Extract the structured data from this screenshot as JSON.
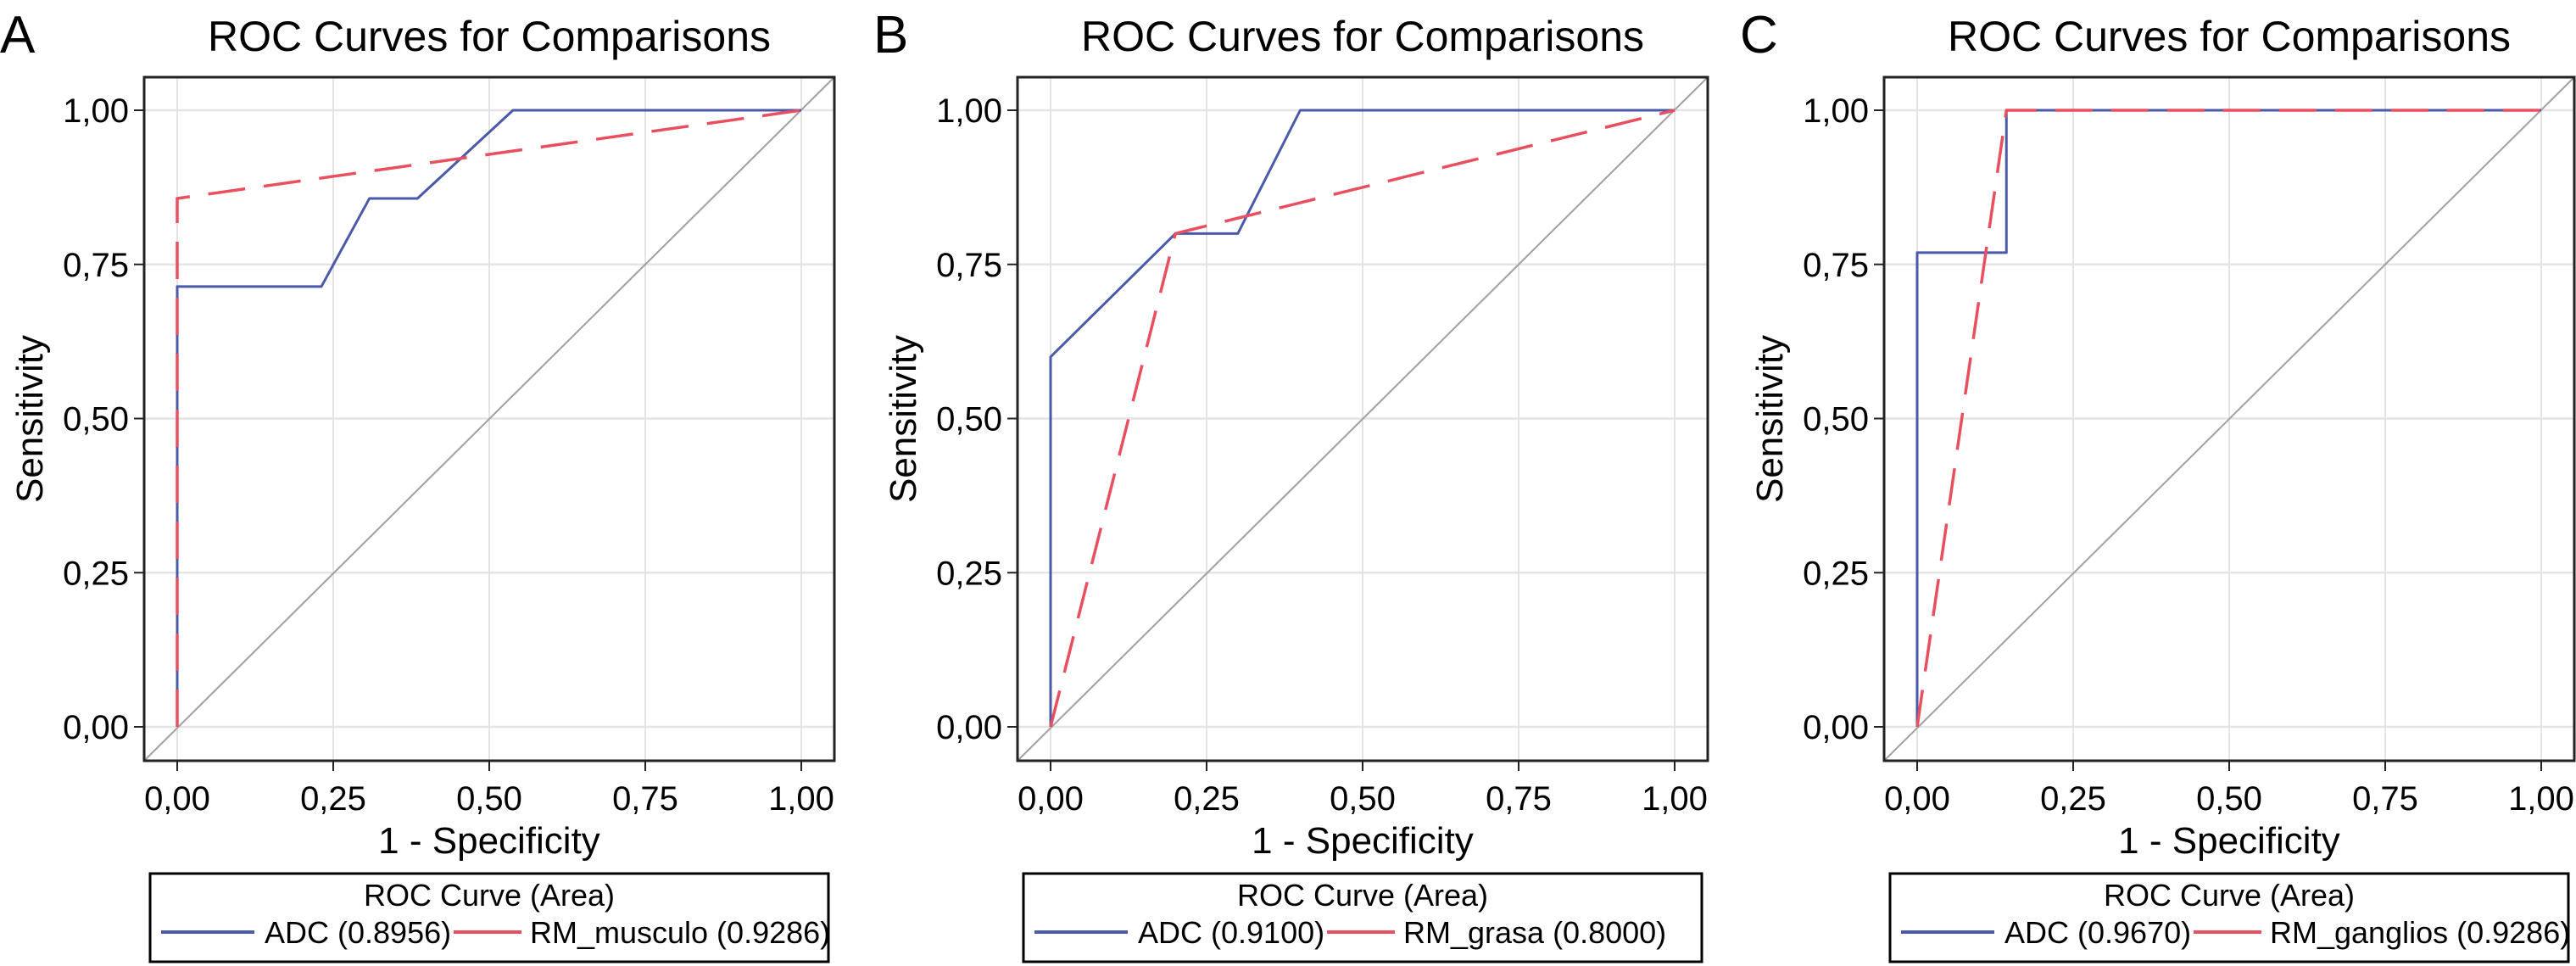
{
  "colors": {
    "ADC": "#4a5aa8",
    "RM": "#e8505f",
    "reference": "#a0a0a0",
    "grid": "#e4e4e4",
    "frame": "#222222"
  },
  "chart_data": [
    {
      "type": "line",
      "panel_label": "A",
      "title": "ROC Curves for Comparisons",
      "xlabel": "1 - Specificity",
      "ylabel": "Sensitivity",
      "xlim": [
        0,
        1
      ],
      "ylim": [
        0,
        1
      ],
      "xticks": [
        "0,00",
        "0,25",
        "0,50",
        "0,75",
        "1,00"
      ],
      "yticks": [
        "0,00",
        "0,25",
        "0,50",
        "0,75",
        "1,00"
      ],
      "grid": true,
      "reference_line": "diagonal",
      "legend": {
        "title": "ROC Curve (Area)",
        "placement": "bottom",
        "entries": [
          "ADC (0.8956)",
          "RM_musculo (0.9286)"
        ]
      },
      "series": [
        {
          "name": "ADC (0.8956)",
          "color": "#4a5aa8",
          "style": "solid",
          "x": [
            0,
            0,
            0.231,
            0.308,
            0.385,
            0.538,
            1
          ],
          "y": [
            0,
            0.714,
            0.714,
            0.857,
            0.857,
            1,
            1
          ]
        },
        {
          "name": "RM_musculo (0.9286)",
          "color": "#e8505f",
          "style": "dashed",
          "x": [
            0,
            0,
            1
          ],
          "y": [
            0,
            0.857,
            1
          ]
        }
      ]
    },
    {
      "type": "line",
      "panel_label": "B",
      "title": "ROC Curves for Comparisons",
      "xlabel": "1 - Specificity",
      "ylabel": "Sensitivity",
      "xlim": [
        0,
        1
      ],
      "ylim": [
        0,
        1
      ],
      "xticks": [
        "0,00",
        "0,25",
        "0,50",
        "0,75",
        "1,00"
      ],
      "yticks": [
        "0,00",
        "0,25",
        "0,50",
        "0,75",
        "1,00"
      ],
      "grid": true,
      "reference_line": "diagonal",
      "legend": {
        "title": "ROC Curve (Area)",
        "placement": "bottom",
        "entries": [
          "ADC (0.9100)",
          "RM_grasa (0.8000)"
        ]
      },
      "series": [
        {
          "name": "ADC (0.9100)",
          "color": "#4a5aa8",
          "style": "solid",
          "x": [
            0,
            0,
            0.05,
            0.2,
            0.3,
            0.4,
            1
          ],
          "y": [
            0,
            0.6,
            0.65,
            0.8,
            0.8,
            1,
            1
          ]
        },
        {
          "name": "RM_grasa (0.8000)",
          "color": "#e8505f",
          "style": "dashed",
          "x": [
            0,
            0.2,
            1
          ],
          "y": [
            0,
            0.8,
            1
          ]
        }
      ]
    },
    {
      "type": "line",
      "panel_label": "C",
      "title": "ROC Curves for Comparisons",
      "xlabel": "1 - Specificity",
      "ylabel": "Sensitivity",
      "xlim": [
        0,
        1
      ],
      "ylim": [
        0,
        1
      ],
      "xticks": [
        "0,00",
        "0,25",
        "0,50",
        "0,75",
        "1,00"
      ],
      "yticks": [
        "0,00",
        "0,25",
        "0,50",
        "0,75",
        "1,00"
      ],
      "grid": true,
      "reference_line": "diagonal",
      "legend": {
        "title": "ROC Curve (Area)",
        "placement": "bottom",
        "entries": [
          "ADC (0.9670)",
          "RM_ganglios (0.9286)"
        ]
      },
      "series": [
        {
          "name": "ADC (0.9670)",
          "color": "#4a5aa8",
          "style": "solid",
          "x": [
            0,
            0,
            0.143,
            0.143,
            1
          ],
          "y": [
            0,
            0.769,
            0.769,
            1,
            1
          ]
        },
        {
          "name": "RM_ganglios (0.9286)",
          "color": "#e8505f",
          "style": "dashed",
          "x": [
            0,
            0.143,
            1
          ],
          "y": [
            0,
            1,
            1
          ]
        }
      ]
    }
  ]
}
